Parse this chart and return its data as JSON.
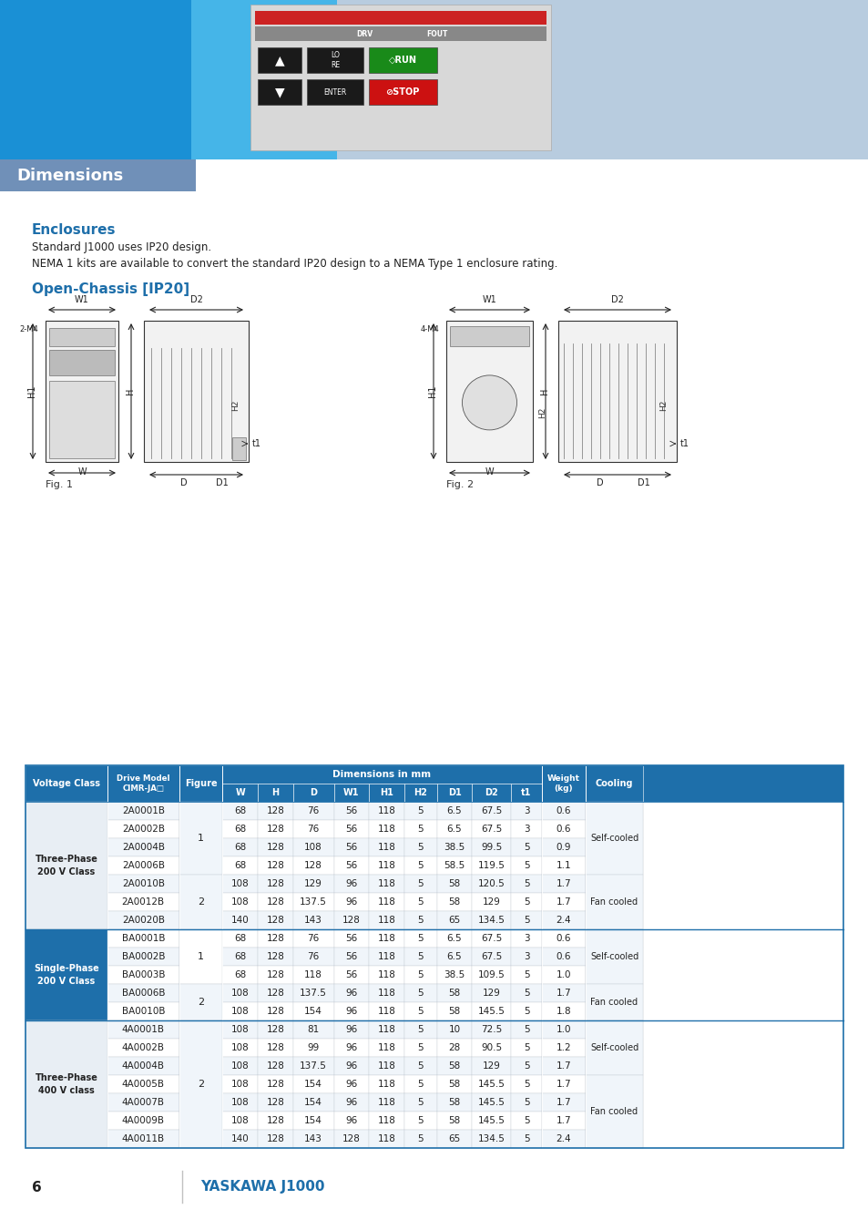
{
  "header_bg": "#1e6faa",
  "header_text_color": "#ffffff",
  "border_color": "#1e6faa",
  "title_color": "#1e6faa",
  "text_color": "#222222",
  "page_bg": "#ffffff",
  "enclosures_color": "#1e6faa",
  "open_chassis_color": "#1e6faa",
  "footer_text_color": "#1e6faa",
  "dim_box_color": "#6b8cba",
  "banner_blue_left": "#2090d8",
  "banner_blue_mid": "#55bbe8",
  "banner_lavender": "#b0c4de",
  "rows": [
    [
      "Three-Phase\n200 V Class",
      "2A0001B",
      "1",
      "68",
      "128",
      "76",
      "56",
      "118",
      "5",
      "6.5",
      "67.5",
      "3",
      "0.6",
      ""
    ],
    [
      "",
      "2A0002B",
      "",
      "68",
      "128",
      "76",
      "56",
      "118",
      "5",
      "6.5",
      "67.5",
      "3",
      "0.6",
      "Self-cooled"
    ],
    [
      "",
      "2A0004B",
      "",
      "68",
      "128",
      "108",
      "56",
      "118",
      "5",
      "38.5",
      "99.5",
      "5",
      "0.9",
      ""
    ],
    [
      "",
      "2A0006B",
      "",
      "68",
      "128",
      "128",
      "56",
      "118",
      "5",
      "58.5",
      "119.5",
      "5",
      "1.1",
      ""
    ],
    [
      "",
      "2A0010B",
      "2",
      "108",
      "128",
      "129",
      "96",
      "118",
      "5",
      "58",
      "120.5",
      "5",
      "1.7",
      ""
    ],
    [
      "",
      "2A0012B",
      "",
      "108",
      "128",
      "137.5",
      "96",
      "118",
      "5",
      "58",
      "129",
      "5",
      "1.7",
      "Fan cooled"
    ],
    [
      "",
      "2A0020B",
      "",
      "140",
      "128",
      "143",
      "128",
      "118",
      "5",
      "65",
      "134.5",
      "5",
      "2.4",
      ""
    ],
    [
      "Single-Phase\n200 V Class",
      "BA0001B",
      "1",
      "68",
      "128",
      "76",
      "56",
      "118",
      "5",
      "6.5",
      "67.5",
      "3",
      "0.6",
      ""
    ],
    [
      "",
      "BA0002B",
      "",
      "68",
      "128",
      "76",
      "56",
      "118",
      "5",
      "6.5",
      "67.5",
      "3",
      "0.6",
      "Self-cooled"
    ],
    [
      "",
      "BA0003B",
      "",
      "68",
      "128",
      "118",
      "56",
      "118",
      "5",
      "38.5",
      "109.5",
      "5",
      "1.0",
      ""
    ],
    [
      "",
      "BA0006B",
      "2",
      "108",
      "128",
      "137.5",
      "96",
      "118",
      "5",
      "58",
      "129",
      "5",
      "1.7",
      ""
    ],
    [
      "",
      "BA0010B",
      "",
      "108",
      "128",
      "154",
      "96",
      "118",
      "5",
      "58",
      "145.5",
      "5",
      "1.8",
      "Fan cooled"
    ],
    [
      "Three-Phase\n400 V class",
      "4A0001B",
      "2",
      "108",
      "128",
      "81",
      "96",
      "118",
      "5",
      "10",
      "72.5",
      "5",
      "1.0",
      ""
    ],
    [
      "",
      "4A0002B",
      "",
      "108",
      "128",
      "99",
      "96",
      "118",
      "5",
      "28",
      "90.5",
      "5",
      "1.2",
      "Self-cooled"
    ],
    [
      "",
      "4A0004B",
      "",
      "108",
      "128",
      "137.5",
      "96",
      "118",
      "5",
      "58",
      "129",
      "5",
      "1.7",
      ""
    ],
    [
      "",
      "4A0005B",
      "",
      "108",
      "128",
      "154",
      "96",
      "118",
      "5",
      "58",
      "145.5",
      "5",
      "1.7",
      ""
    ],
    [
      "",
      "4A0007B",
      "",
      "108",
      "128",
      "154",
      "96",
      "118",
      "5",
      "58",
      "145.5",
      "5",
      "1.7",
      "Fan cooled"
    ],
    [
      "",
      "4A0009B",
      "",
      "108",
      "128",
      "154",
      "96",
      "118",
      "5",
      "58",
      "145.5",
      "5",
      "1.7",
      ""
    ],
    [
      "",
      "4A0011B",
      "",
      "140",
      "128",
      "143",
      "128",
      "118",
      "5",
      "65",
      "134.5",
      "5",
      "2.4",
      ""
    ]
  ],
  "voltage_sections": [
    {
      "label": "Three-Phase\n200 V Class",
      "start": 0,
      "end": 6,
      "text_color": "#222222",
      "bg": "#e8eef4"
    },
    {
      "label": "Single-Phase\n200 V Class",
      "start": 7,
      "end": 11,
      "text_color": "#ffffff",
      "bg": "#1e6faa"
    },
    {
      "label": "Three-Phase\n400 V class",
      "start": 12,
      "end": 18,
      "text_color": "#222222",
      "bg": "#e8eef4"
    }
  ],
  "figure_spans": [
    {
      "start": 0,
      "end": 3,
      "val": "1"
    },
    {
      "start": 4,
      "end": 6,
      "val": "2"
    },
    {
      "start": 7,
      "end": 9,
      "val": "1"
    },
    {
      "start": 10,
      "end": 11,
      "val": "2"
    },
    {
      "start": 12,
      "end": 18,
      "val": "2"
    }
  ],
  "cooling_spans": [
    {
      "start": 0,
      "end": 3,
      "val": "Self-cooled"
    },
    {
      "start": 4,
      "end": 6,
      "val": "Fan cooled"
    },
    {
      "start": 7,
      "end": 9,
      "val": "Self-cooled"
    },
    {
      "start": 10,
      "end": 11,
      "val": "Fan cooled"
    },
    {
      "start": 12,
      "end": 14,
      "val": "Self-cooled"
    },
    {
      "start": 15,
      "end": 18,
      "val": "Fan cooled"
    }
  ]
}
